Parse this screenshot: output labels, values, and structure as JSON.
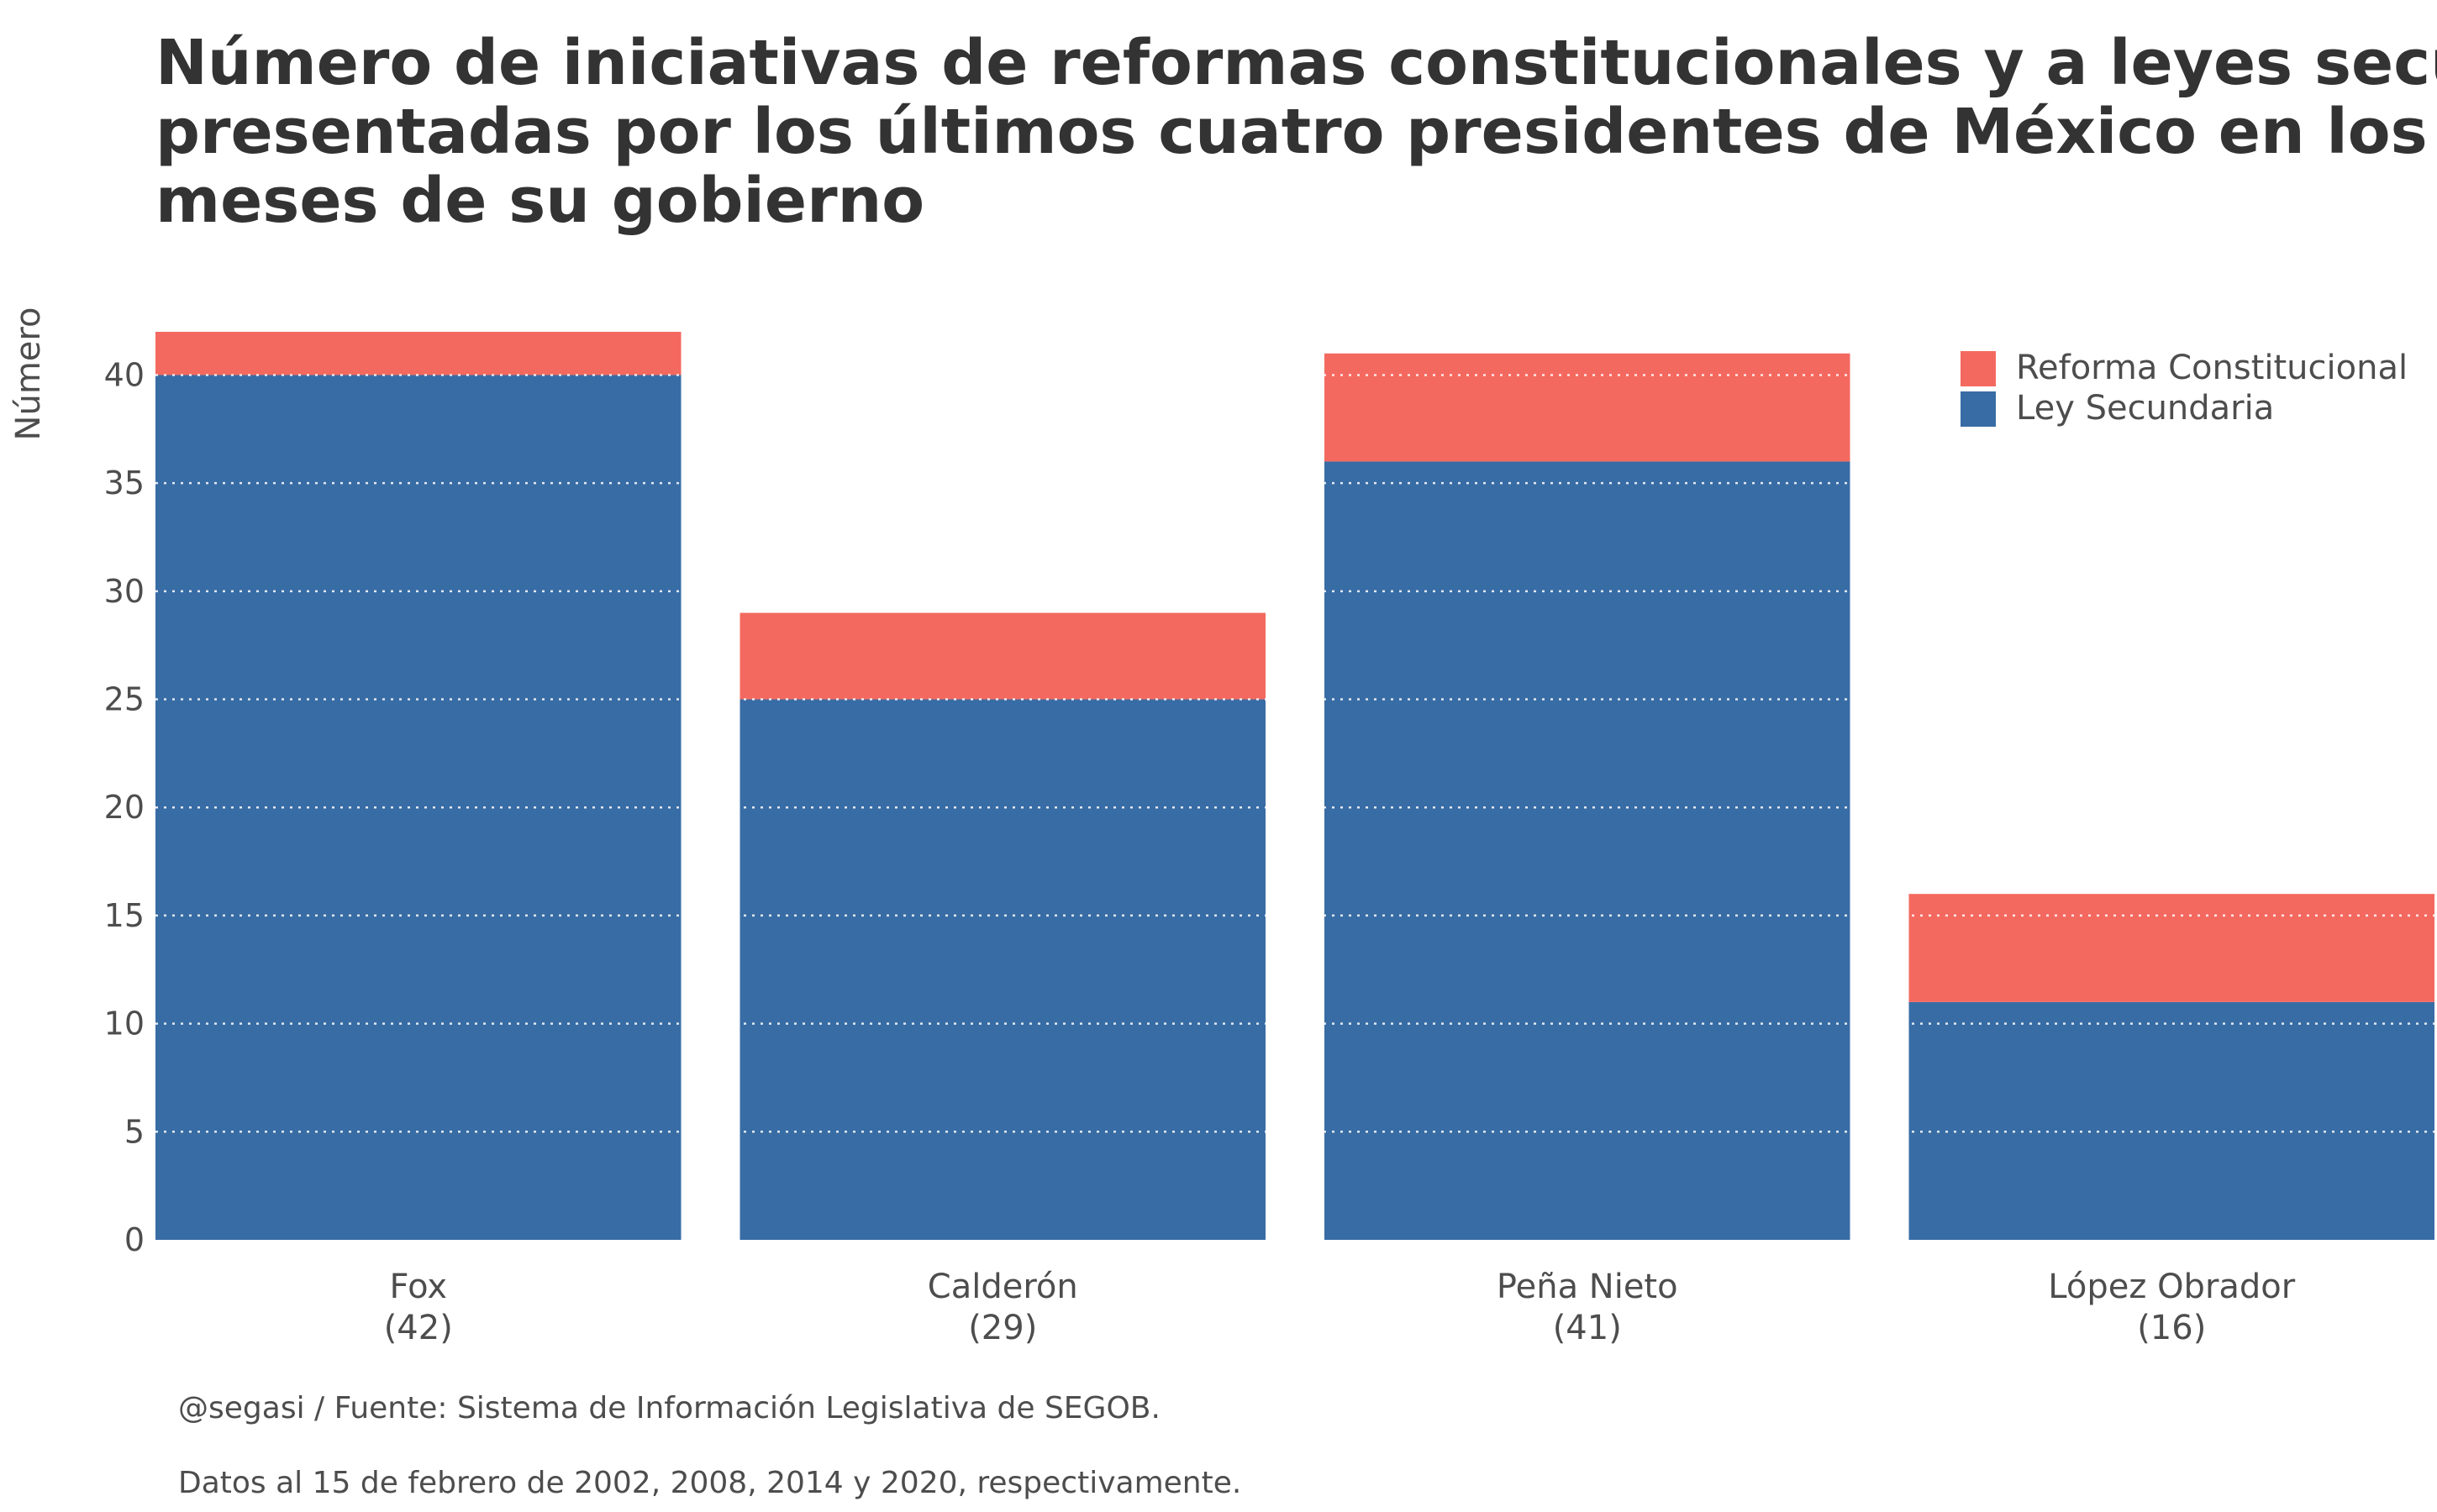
{
  "chart_data": {
    "type": "bar",
    "stacked": true,
    "title_lines": [
      "Número de iniciativas de reformas constitucionales y a leyes secundarias",
      "presentadas por los últimos cuatro presidentes de México en los primeros",
      "meses de su gobierno"
    ],
    "ylabel": "Número",
    "xlabel": "",
    "ylim": [
      0,
      42
    ],
    "yticks": [
      0,
      5,
      10,
      15,
      20,
      25,
      30,
      35,
      40
    ],
    "grid": true,
    "legend_position": "top-right",
    "categories": [
      "Fox",
      "Calderón",
      "Peña Nieto",
      "López Obrador"
    ],
    "category_totals": [
      "(42)",
      "(29)",
      "(41)",
      "(16)"
    ],
    "series": [
      {
        "name": "Ley Secundaria",
        "color": "#386CA5",
        "values": [
          40,
          25,
          36,
          11
        ]
      },
      {
        "name": "Reforma Constitucional",
        "color": "#F4695F",
        "values": [
          2,
          4,
          5,
          5
        ]
      }
    ],
    "legend_order": [
      "Reforma Constitucional",
      "Ley Secundaria"
    ]
  },
  "captions": {
    "source": "@segasi / Fuente: Sistema de Información Legislativa de SEGOB.",
    "note": "Datos al 15 de febrero de 2002, 2008, 2014 y 2020, respectivamente."
  }
}
